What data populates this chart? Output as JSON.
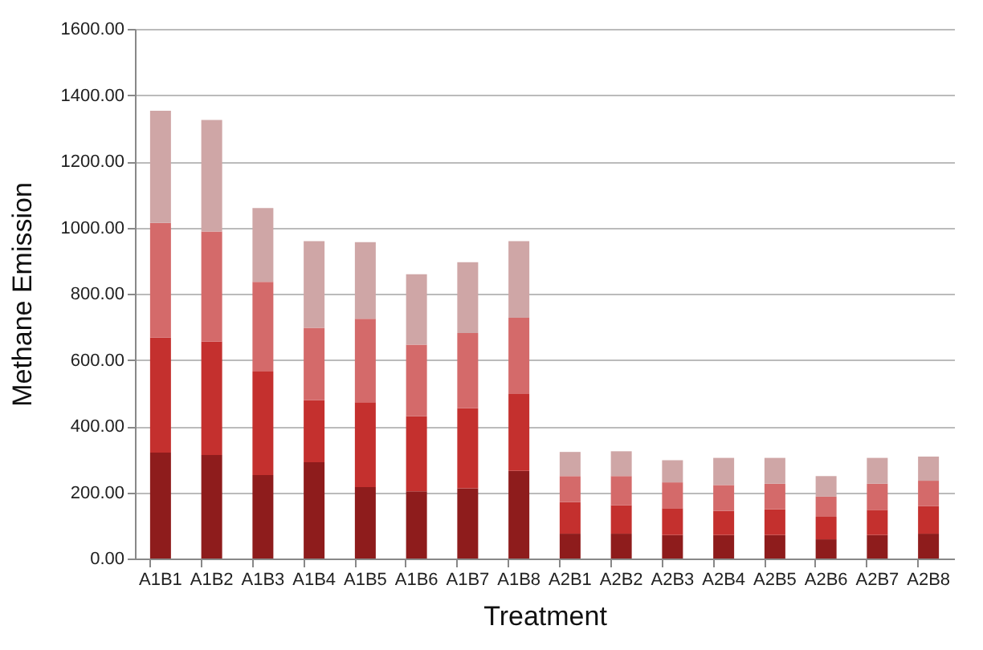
{
  "chart_data": {
    "type": "bar",
    "stacked": true,
    "xlabel": "Treatment",
    "ylabel": "Methane Emission",
    "categories": [
      "A1B1",
      "A1B2",
      "A1B3",
      "A1B4",
      "A1B5",
      "A1B6",
      "A1B7",
      "A1B8",
      "A2B1",
      "A2B2",
      "A2B3",
      "A2B4",
      "A2B5",
      "A2B6",
      "A2B7",
      "A2B8"
    ],
    "series": [
      {
        "color": "#8e1c1c",
        "values": [
          320,
          313,
          252,
          291,
          216,
          203,
          212,
          265,
          75,
          75,
          71,
          71,
          71,
          58,
          71,
          75
        ]
      },
      {
        "color": "#c4302e",
        "values": [
          348,
          343,
          313,
          187,
          256,
          227,
          242,
          232,
          96,
          86,
          81,
          73,
          78,
          68,
          76,
          83
        ]
      },
      {
        "color": "#d46a6a",
        "values": [
          346,
          332,
          271,
          219,
          252,
          216,
          227,
          230,
          78,
          88,
          78,
          78,
          77,
          61,
          79,
          77
        ]
      },
      {
        "color": "#cfa6a6",
        "values": [
          339,
          337,
          223,
          262,
          232,
          213,
          214,
          232,
          73,
          75,
          67,
          82,
          78,
          62,
          78,
          73
        ]
      }
    ],
    "ylim": [
      0,
      1600
    ],
    "yticks": [
      {
        "value": 0,
        "label": "0.00"
      },
      {
        "value": 200,
        "label": "200.00"
      },
      {
        "value": 400,
        "label": "400.00"
      },
      {
        "value": 600,
        "label": "600.00"
      },
      {
        "value": 800,
        "label": "800.00"
      },
      {
        "value": 1000,
        "label": "1000.00"
      },
      {
        "value": 1200,
        "label": "1200.00"
      },
      {
        "value": 1400,
        "label": "1400.00"
      },
      {
        "value": 1600,
        "label": "1600.00"
      }
    ],
    "grid": "y",
    "legend": false
  }
}
